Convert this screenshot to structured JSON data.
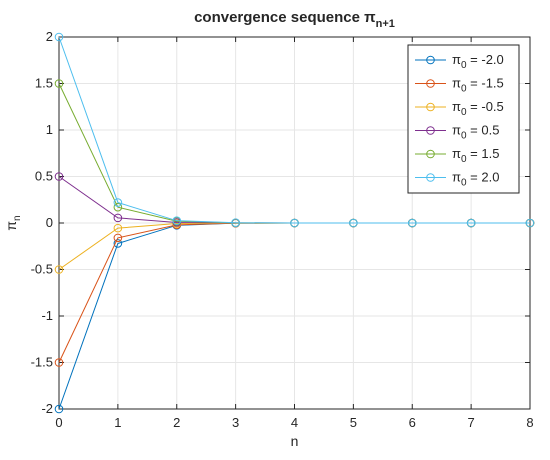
{
  "chart_data": {
    "type": "line",
    "title": "convergence sequence π",
    "title_subscript": "n+1",
    "xlabel": "n",
    "ylabel": "π",
    "ylabel_subscript": "n",
    "xlim": [
      0,
      8
    ],
    "ylim": [
      -2,
      2
    ],
    "xticks": [
      "0",
      "1",
      "2",
      "3",
      "4",
      "5",
      "6",
      "7",
      "8"
    ],
    "yticks": [
      "-2",
      "-1.5",
      "-1",
      "-0.5",
      "0",
      "0.5",
      "1",
      "1.5",
      "2"
    ],
    "grid": true,
    "legend_position": "top-right",
    "x": [
      0,
      1,
      2,
      3,
      4,
      5,
      6,
      7,
      8
    ],
    "series": [
      {
        "name_prefix": "π",
        "name_sub": "0",
        "name_suffix": " = -2.0",
        "color": "#0072bd",
        "values": [
          -2.0,
          -0.22,
          -0.025,
          -0.002,
          0,
          0,
          0,
          0,
          0
        ]
      },
      {
        "name_prefix": "π",
        "name_sub": "0",
        "name_suffix": " = -1.5",
        "color": "#d95319",
        "values": [
          -1.5,
          -0.16,
          -0.02,
          -0.002,
          0,
          0,
          0,
          0,
          0
        ]
      },
      {
        "name_prefix": "π",
        "name_sub": "0",
        "name_suffix": " = -0.5",
        "color": "#edb120",
        "values": [
          -0.5,
          -0.055,
          -0.006,
          -0.001,
          0,
          0,
          0,
          0,
          0
        ]
      },
      {
        "name_prefix": "π",
        "name_sub": "0",
        "name_suffix": " = 0.5",
        "color": "#7e2f8e",
        "values": [
          0.5,
          0.055,
          0.006,
          0.001,
          0,
          0,
          0,
          0,
          0
        ]
      },
      {
        "name_prefix": "π",
        "name_sub": "0",
        "name_suffix": " = 1.5",
        "color": "#77ac30",
        "values": [
          1.5,
          0.17,
          0.019,
          0.002,
          0,
          0,
          0,
          0,
          0
        ]
      },
      {
        "name_prefix": "π",
        "name_sub": "0",
        "name_suffix": " = 2.0",
        "color": "#4dbeee",
        "values": [
          2.0,
          0.22,
          0.025,
          0.003,
          0,
          0,
          0,
          0,
          0
        ]
      }
    ]
  }
}
